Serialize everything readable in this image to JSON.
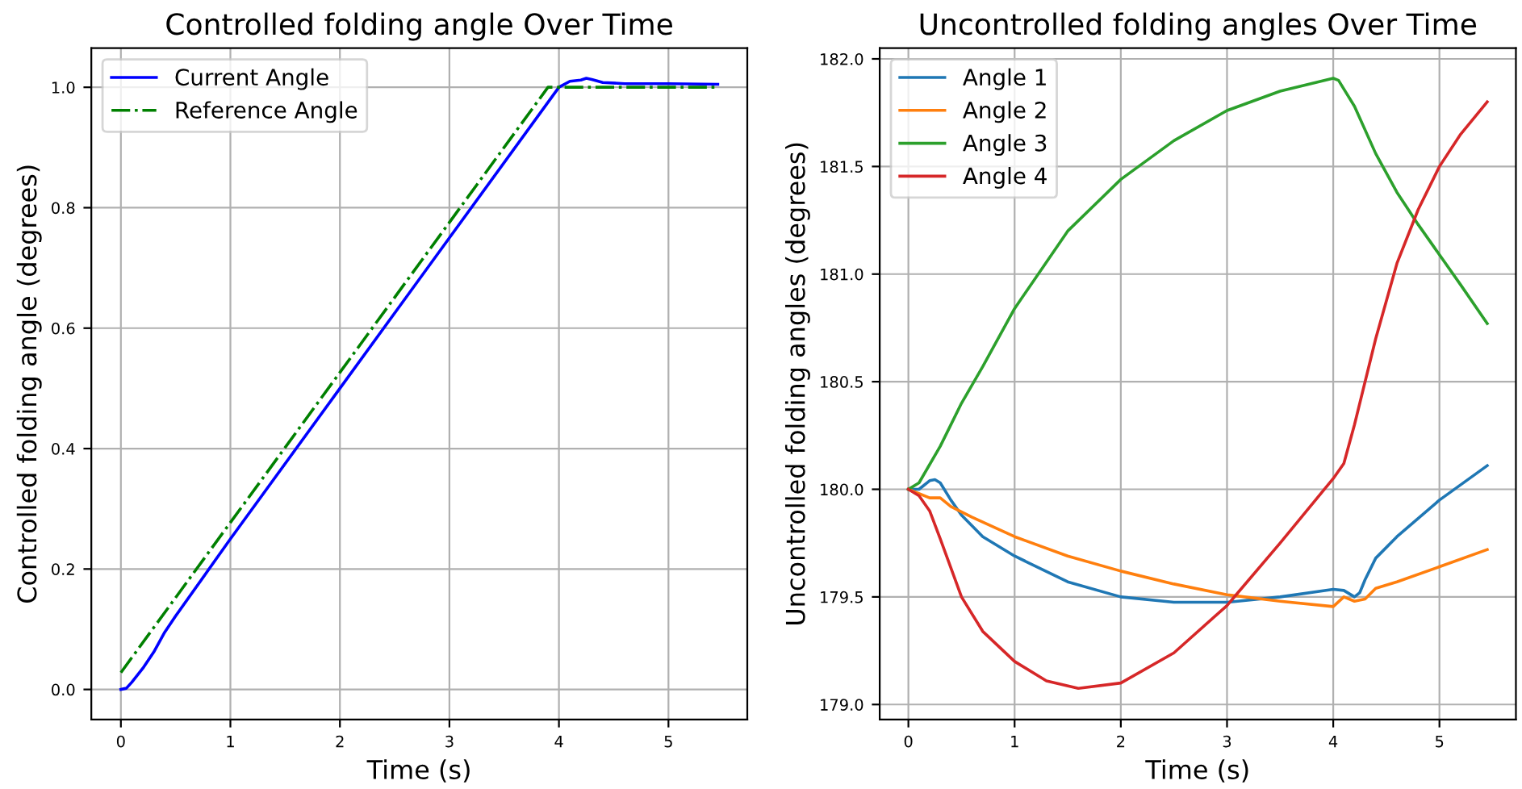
{
  "chart_data": [
    {
      "type": "line",
      "title": "Controlled folding angle Over Time",
      "xlabel": "Time (s)",
      "ylabel": "Controlled folding angle (degrees)",
      "xlim": [
        -0.27,
        5.72
      ],
      "xticks": [
        0,
        1,
        2,
        3,
        4,
        5
      ],
      "ylim": [
        -0.05,
        1.065
      ],
      "yticks": [
        {
          "value": 0,
          "label": "0.0"
        },
        0.2,
        0.4,
        0.6,
        0.8,
        {
          "value": 1,
          "label": "1.0"
        }
      ],
      "grid": true,
      "legend": "top left",
      "series": [
        {
          "name": "Current Angle",
          "color": "#0000ff",
          "line_style": "solid",
          "x": [
            0,
            0.05,
            0.1,
            0.2,
            0.3,
            0.4,
            0.5,
            1,
            2,
            3,
            4,
            4.1,
            4.2,
            4.25,
            4.3,
            4.4,
            4.6,
            5,
            5.45
          ],
          "values": [
            0,
            0.002,
            0.012,
            0.035,
            0.062,
            0.095,
            0.122,
            0.25,
            0.5,
            0.75,
            1.0,
            1.01,
            1.012,
            1.015,
            1.013,
            1.008,
            1.006,
            1.006,
            1.005
          ]
        },
        {
          "name": "Reference Angle",
          "color": "#008000",
          "line_style": "dashdot",
          "x": [
            0,
            3.9,
            5.45
          ],
          "values": [
            0.028,
            1.0,
            1.0
          ]
        }
      ]
    },
    {
      "type": "line",
      "title": "Uncontrolled folding angles Over Time",
      "xlabel": "Time (s)",
      "ylabel": "Uncontrolled folding angles (degrees)",
      "xlim": [
        -0.27,
        5.72
      ],
      "xticks": [
        0,
        1,
        2,
        3,
        4,
        5
      ],
      "ylim": [
        178.93,
        182.05
      ],
      "yticks": [
        {
          "value": 179,
          "label": "179.0"
        },
        179.5,
        {
          "value": 180,
          "label": "180.0"
        },
        180.5,
        {
          "value": 181,
          "label": "181.0"
        },
        181.5,
        {
          "value": 182,
          "label": "182.0"
        }
      ],
      "grid": true,
      "legend": "top left",
      "series": [
        {
          "name": "Angle 1",
          "color": "#1f77b4",
          "x": [
            0,
            0.1,
            0.2,
            0.25,
            0.3,
            0.4,
            0.5,
            0.7,
            1,
            1.5,
            2,
            2.5,
            3,
            3.5,
            4,
            4.1,
            4.2,
            4.25,
            4.3,
            4.4,
            4.6,
            5,
            5.45
          ],
          "values": [
            180,
            180.0,
            180.04,
            180.045,
            180.03,
            179.95,
            179.88,
            179.78,
            179.69,
            179.57,
            179.5,
            179.475,
            179.475,
            179.5,
            179.535,
            179.53,
            179.5,
            179.52,
            179.58,
            179.68,
            179.78,
            179.95,
            180.11
          ]
        },
        {
          "name": "Angle 2",
          "color": "#ff7f0e",
          "x": [
            0,
            0.2,
            0.3,
            0.4,
            0.6,
            1,
            1.5,
            2,
            2.5,
            3,
            3.5,
            4,
            4.1,
            4.2,
            4.3,
            4.4,
            4.6,
            5,
            5.45
          ],
          "values": [
            180,
            179.96,
            179.96,
            179.92,
            179.87,
            179.78,
            179.69,
            179.62,
            179.56,
            179.51,
            179.48,
            179.455,
            179.5,
            179.48,
            179.49,
            179.54,
            179.57,
            179.64,
            179.72
          ]
        },
        {
          "name": "Angle 3",
          "color": "#2ca02c",
          "x": [
            0,
            0.1,
            0.3,
            0.5,
            0.7,
            1,
            1.5,
            2,
            2.5,
            3,
            3.5,
            4,
            4.05,
            4.2,
            4.4,
            4.6,
            4.8,
            5,
            5.2,
            5.45
          ],
          "values": [
            180,
            180.03,
            180.2,
            180.4,
            180.57,
            180.84,
            181.2,
            181.44,
            181.62,
            181.76,
            181.85,
            181.91,
            181.9,
            181.78,
            181.56,
            181.38,
            181.23,
            181.09,
            180.95,
            180.77
          ]
        },
        {
          "name": "Angle 4",
          "color": "#d62728",
          "x": [
            0,
            0.1,
            0.2,
            0.3,
            0.5,
            0.7,
            1,
            1.3,
            1.6,
            2,
            2.5,
            3,
            3.5,
            4,
            4.1,
            4.2,
            4.4,
            4.6,
            4.8,
            5,
            5.2,
            5.45
          ],
          "values": [
            180,
            179.97,
            179.9,
            179.77,
            179.5,
            179.34,
            179.2,
            179.11,
            179.075,
            179.1,
            179.24,
            179.46,
            179.75,
            180.05,
            180.12,
            180.3,
            180.7,
            181.05,
            181.3,
            181.5,
            181.65,
            181.8
          ]
        }
      ]
    }
  ]
}
